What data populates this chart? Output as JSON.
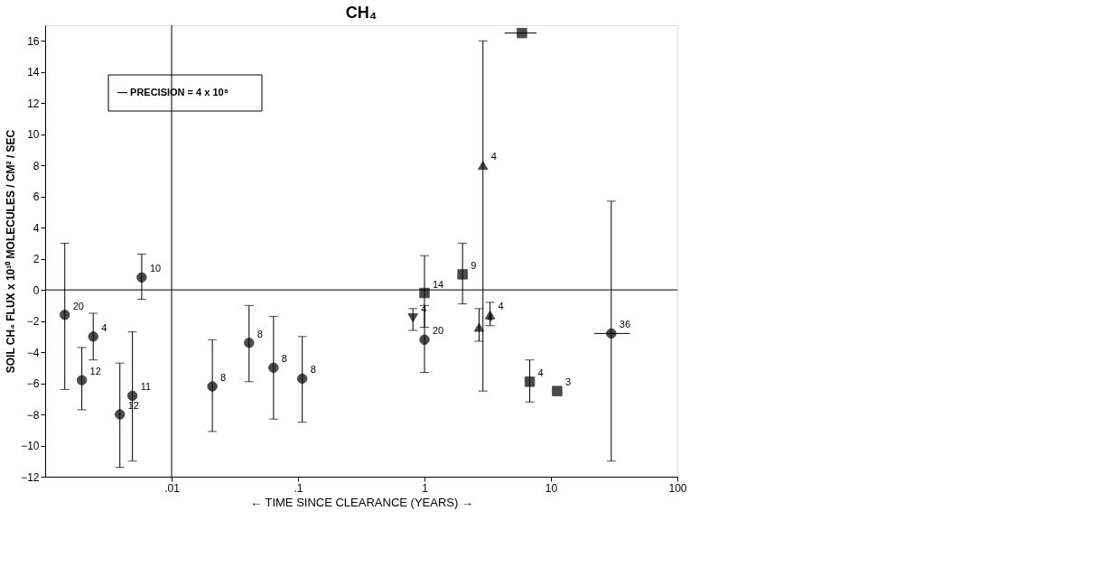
{
  "chart_data": {
    "type": "scatter",
    "title": "CH₄",
    "xlabel": "←  TIME SINCE CLEARANCE (YEARS)  →",
    "ylabel": "SOIL CH₄ FLUX x 10¹⁰ MOLECULES / CM² / SEC",
    "log": "x",
    "xlim": [
      0.001,
      100
    ],
    "xticks": [
      {
        "value": 0.01,
        "label": ".01"
      },
      {
        "value": 0.1,
        "label": ".1"
      },
      1,
      10,
      100
    ],
    "ylim": [
      -12,
      17
    ],
    "yticks": [
      -12,
      -10,
      -8,
      -6,
      -4,
      -2,
      0,
      2,
      4,
      6,
      8,
      10,
      12,
      14,
      16
    ],
    "grid": false,
    "ref_lines": [
      {
        "axis": "y",
        "value": 0
      },
      {
        "axis": "x",
        "value": 0.01
      }
    ],
    "annotations": [
      "— PRECISION = 4 x 10⁸",
      {
        "text": "20",
        "x": 0.00143,
        "y": -1.6
      },
      {
        "text": "12",
        "x": 0.00195,
        "y": -5.8
      },
      {
        "text": "4",
        "x": 0.0024,
        "y": -3.0
      },
      {
        "text": "12",
        "x": 0.0039,
        "y": -8.0
      },
      {
        "text": "11",
        "x": 0.0049,
        "y": -6.8
      },
      {
        "text": "10",
        "x": 0.0058,
        "y": 0.8
      },
      {
        "text": "8",
        "x": 0.021,
        "y": -6.2
      },
      {
        "text": "8",
        "x": 0.041,
        "y": -3.4
      },
      {
        "text": "8",
        "x": 0.064,
        "y": -5.0
      },
      {
        "text": "8",
        "x": 0.108,
        "y": -5.7
      },
      {
        "text": "20",
        "x": 1,
        "y": -3.2
      },
      {
        "text": "36",
        "x": 30,
        "y": -2.8
      },
      {
        "text": "14",
        "x": 1,
        "y": -0.2
      },
      {
        "text": "9",
        "x": 2,
        "y": 1.0
      },
      {
        "text": "4",
        "x": 0.81,
        "y": -1.8
      },
      {
        "text": "4",
        "x": 2.7,
        "y": -2.4
      },
      {
        "text": "4",
        "x": 3.3,
        "y": -1.6
      },
      {
        "text": "4",
        "x": 2.9,
        "y": 8.0
      },
      {
        "text": "4",
        "x": 6.8,
        "y": -5.9
      },
      {
        "text": "3",
        "x": 11.2,
        "y": -6.5
      }
    ],
    "series": [
      {
        "marker": "circle",
        "color": "#000000",
        "x": [
          0.00143,
          0.00195,
          0.0024
        ],
        "values": [
          -1.6,
          -5.8,
          -3.0
        ],
        "errors": [
          [
            -6.4,
            3.0
          ],
          [
            -7.7,
            -3.7
          ],
          [
            -4.5,
            -1.5
          ]
        ]
      },
      {
        "marker": "circle",
        "color": "#000000",
        "x": [
          0.0039,
          0.0049
        ],
        "values": [
          -8.0,
          -6.8
        ],
        "errors": [
          [
            -11.4,
            -4.7
          ],
          [
            -11.0,
            -2.7
          ]
        ]
      },
      {
        "marker": "circle",
        "color": "#000000",
        "x": [
          0.0058,
          0.021,
          0.041,
          0.064,
          0.108,
          1,
          30
        ],
        "values": [
          0.8,
          -6.2,
          -3.4,
          -5.0,
          -5.7,
          -3.2,
          -2.8
        ],
        "errors": [
          [
            -0.6,
            2.3
          ],
          [
            -9.1,
            -3.2
          ],
          [
            -5.9,
            -1.0
          ],
          [
            -8.3,
            -1.7
          ],
          [
            -8.5,
            -3.0
          ],
          [
            -5.3,
            -1.0
          ],
          [
            -11.0,
            5.7
          ]
        ],
        "xerrors": [
          null,
          null,
          null,
          null,
          null,
          null,
          [
            22,
            42
          ]
        ]
      },
      {
        "marker": "square",
        "color": "#000000",
        "x": [
          1,
          2
        ],
        "values": [
          -0.2,
          1.0
        ],
        "errors": [
          [
            -2.4,
            2.2
          ],
          [
            -0.9,
            3.0
          ]
        ]
      },
      {
        "marker": "triangle-down",
        "color": "#000000",
        "x": [
          0.81
        ],
        "values": [
          -1.8
        ],
        "errors": [
          [
            -2.6,
            -1.2
          ]
        ]
      },
      {
        "marker": "triangle",
        "color": "#000000",
        "x": [
          2.7,
          3.3,
          2.9
        ],
        "values": [
          -2.4,
          -1.6,
          8.0
        ],
        "errors": [
          [
            -3.3,
            -1.2
          ],
          [
            -2.3,
            -0.8
          ],
          [
            -6.5,
            16
          ]
        ]
      },
      {
        "marker": "square",
        "color": "#000000",
        "x": [
          5.9,
          6.8,
          11.2
        ],
        "values": [
          16.5,
          -5.9,
          -6.5
        ],
        "errors": [
          null,
          [
            -7.2,
            -4.5
          ],
          null
        ],
        "xerrors": [
          [
            4.3,
            7.7
          ],
          null,
          null
        ]
      }
    ]
  }
}
